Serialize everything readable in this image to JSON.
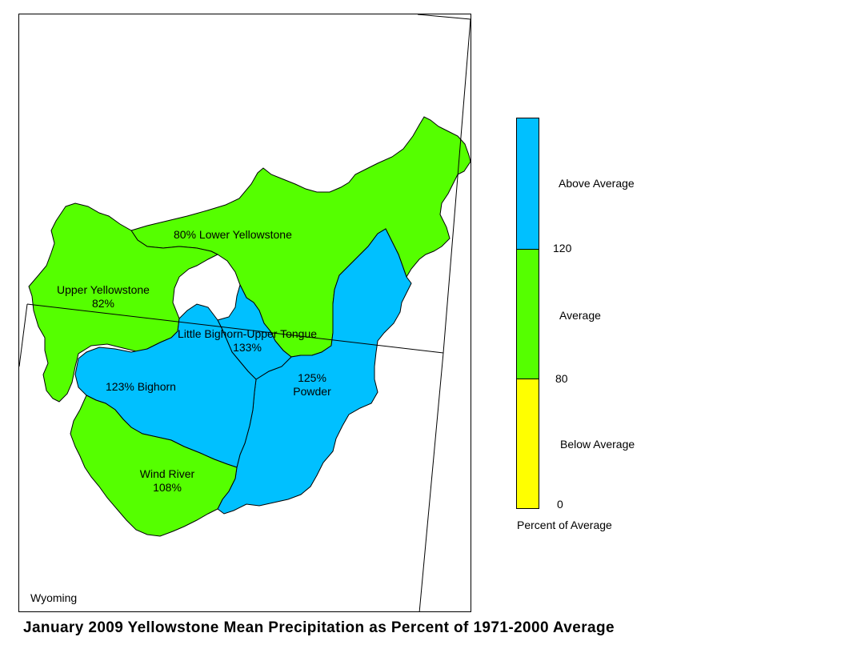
{
  "caption": "January 2009 Yellowstone Mean Precipitation as Percent of 1971-2000 Average",
  "map": {
    "state_label": "Wyoming",
    "basins": [
      {
        "id": "lower-yellowstone",
        "name": "Lower Yellowstone",
        "label": "80% Lower Yellowstone",
        "percent": 80,
        "category": "Average"
      },
      {
        "id": "upper-yellowstone",
        "name": "Upper Yellowstone",
        "label_line1": "Upper Yellowstone",
        "label_line2": "82%",
        "percent": 82,
        "category": "Average"
      },
      {
        "id": "little-bighorn",
        "name": "Little Bighorn-Upper Tongue",
        "label_line1": "Little Bighorn-Upper Tongue",
        "label_line2": "133%",
        "percent": 133,
        "category": "Above Average"
      },
      {
        "id": "bighorn",
        "name": "Bighorn",
        "label": "123%  Bighorn",
        "percent": 123,
        "category": "Above Average"
      },
      {
        "id": "powder",
        "name": "Powder",
        "label_line1": "125%",
        "label_line2": "Powder",
        "percent": 125,
        "category": "Above Average"
      },
      {
        "id": "wind-river",
        "name": "Wind River",
        "label_line1": "Wind River",
        "label_line2": "108%",
        "percent": 108,
        "category": "Average"
      }
    ]
  },
  "legend": {
    "title": "Percent of Average",
    "classes": [
      {
        "label": "Above Average",
        "color": "#00c0ff"
      },
      {
        "label": "Average",
        "color": "#55ff00"
      },
      {
        "label": "Below Average",
        "color": "#ffff00"
      }
    ],
    "breaks": [
      "120",
      "80",
      "0"
    ]
  },
  "colors": {
    "above": "#00c0ff",
    "average": "#55ff00",
    "below": "#ffff00",
    "outline": "#000000"
  }
}
